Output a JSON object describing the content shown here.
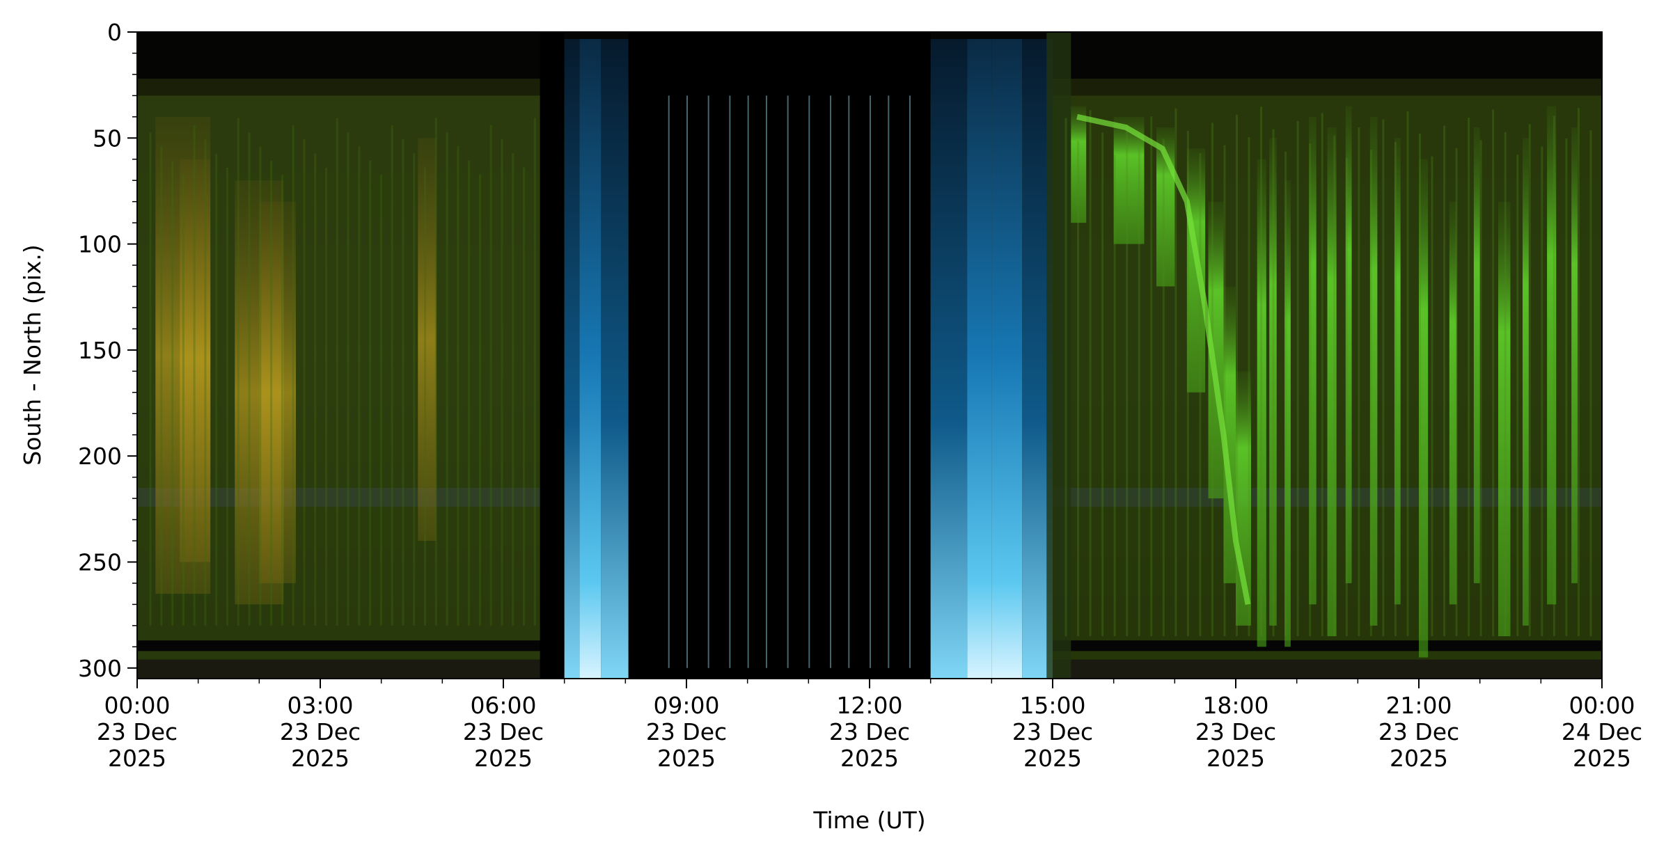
{
  "chart_data": {
    "type": "heatmap",
    "title": "",
    "xlabel": "Time (UT)",
    "ylabel": "South - North (pix.)",
    "xlim": [
      "2025-12-23 00:00",
      "2025-12-24 00:00"
    ],
    "ylim": [
      305,
      0
    ],
    "y_inverted": true,
    "grid": false,
    "x_ticks": [
      {
        "time": "00:00",
        "day": "23 Dec",
        "year": "2025",
        "hour": 0
      },
      {
        "time": "03:00",
        "day": "23 Dec",
        "year": "2025",
        "hour": 3
      },
      {
        "time": "06:00",
        "day": "23 Dec",
        "year": "2025",
        "hour": 6
      },
      {
        "time": "09:00",
        "day": "23 Dec",
        "year": "2025",
        "hour": 9
      },
      {
        "time": "12:00",
        "day": "23 Dec",
        "year": "2025",
        "hour": 12
      },
      {
        "time": "15:00",
        "day": "23 Dec",
        "year": "2025",
        "hour": 15
      },
      {
        "time": "18:00",
        "day": "23 Dec",
        "year": "2025",
        "hour": 18
      },
      {
        "time": "21:00",
        "day": "23 Dec",
        "year": "2025",
        "hour": 21
      },
      {
        "time": "00:00",
        "day": "24 Dec",
        "year": "2025",
        "hour": 24
      }
    ],
    "y_ticks": [
      0,
      50,
      100,
      150,
      200,
      250,
      300
    ],
    "colors": {
      "aurora_green": "#5fd12a",
      "aurora_yellow": "#b89a1e",
      "twilight_blue": "#1e88c8",
      "background_dark": "#1c2a08",
      "night_black": "#000000"
    }
  }
}
